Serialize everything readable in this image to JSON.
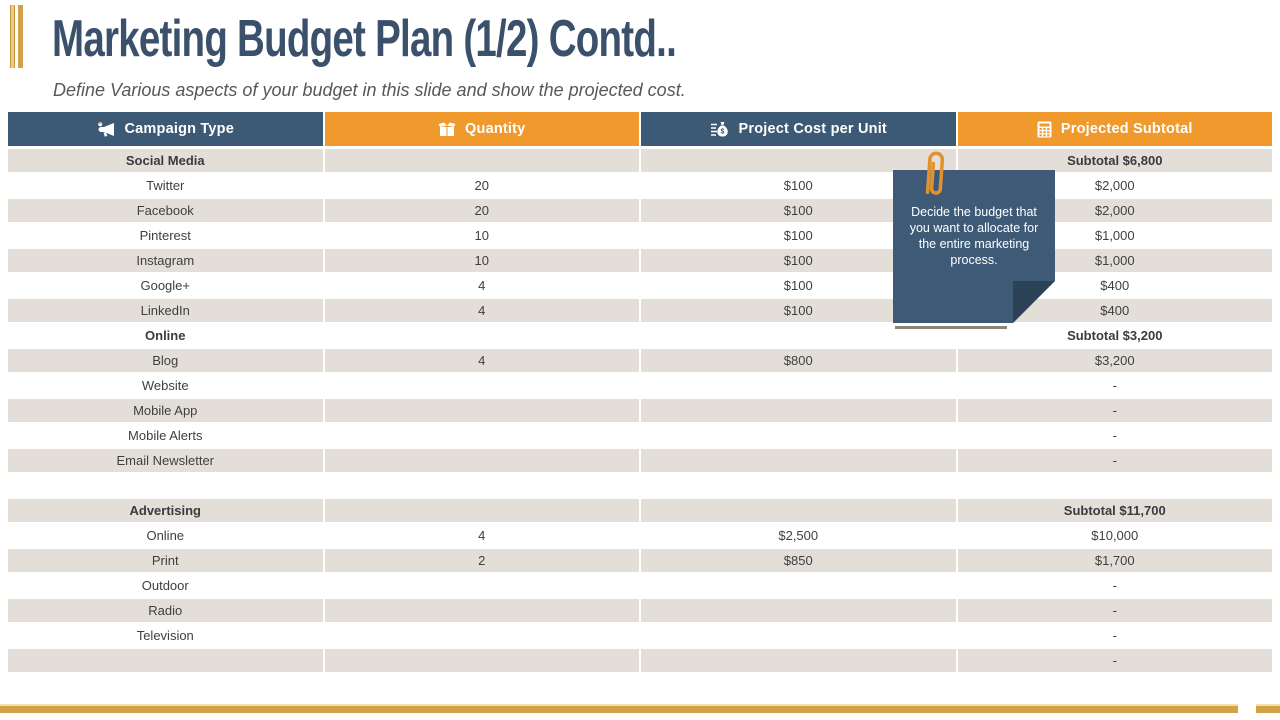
{
  "slide": {
    "title": "Marketing Budget Plan (1/2) Contd..",
    "subtitle": "Define Various aspects of your budget in this slide and show the projected cost."
  },
  "colors": {
    "header_blue": "#3C5A75",
    "header_orange": "#F0992D",
    "row_gray": "#E3DFD8",
    "note_blue": "#3E5A76",
    "accent_gold": "#D2A148"
  },
  "table": {
    "columns": [
      {
        "label": "Campaign Type",
        "icon": "megaphone-icon",
        "color": "#3C5A75"
      },
      {
        "label": "Quantity",
        "icon": "box-icon",
        "color": "#F0992D"
      },
      {
        "label": "Project Cost per Unit",
        "icon": "money-bag-icon",
        "color": "#3C5A75"
      },
      {
        "label": "Projected Subtotal",
        "icon": "calculator-icon",
        "color": "#F0992D"
      }
    ],
    "rows": [
      {
        "type": "section",
        "shade": "gray",
        "label": "Social Media",
        "quantity": "",
        "cost": "",
        "subtotal": "Subtotal $6,800"
      },
      {
        "type": "data",
        "shade": "white",
        "label": "Twitter",
        "quantity": "20",
        "cost": "$100",
        "subtotal": "$2,000"
      },
      {
        "type": "data",
        "shade": "gray",
        "label": "Facebook",
        "quantity": "20",
        "cost": "$100",
        "subtotal": "$2,000"
      },
      {
        "type": "data",
        "shade": "white",
        "label": "Pinterest",
        "quantity": "10",
        "cost": "$100",
        "subtotal": "$1,000"
      },
      {
        "type": "data",
        "shade": "gray",
        "label": "Instagram",
        "quantity": "10",
        "cost": "$100",
        "subtotal": "$1,000"
      },
      {
        "type": "data",
        "shade": "white",
        "label": "Google+",
        "quantity": "4",
        "cost": "$100",
        "subtotal": "$400"
      },
      {
        "type": "data",
        "shade": "gray",
        "label": "LinkedIn",
        "quantity": "4",
        "cost": "$100",
        "subtotal": "$400"
      },
      {
        "type": "section",
        "shade": "white",
        "label": "Online",
        "quantity": "",
        "cost": "",
        "subtotal": "Subtotal $3,200"
      },
      {
        "type": "data",
        "shade": "gray",
        "label": "Blog",
        "quantity": "4",
        "cost": "$800",
        "subtotal": "$3,200"
      },
      {
        "type": "data",
        "shade": "white",
        "label": "Website",
        "quantity": "",
        "cost": "",
        "subtotal": "-"
      },
      {
        "type": "data",
        "shade": "gray",
        "label": "Mobile App",
        "quantity": "",
        "cost": "",
        "subtotal": "-"
      },
      {
        "type": "data",
        "shade": "white",
        "label": "Mobile Alerts",
        "quantity": "",
        "cost": "",
        "subtotal": "-"
      },
      {
        "type": "data",
        "shade": "gray",
        "label": "Email Newsletter",
        "quantity": "",
        "cost": "",
        "subtotal": "-"
      },
      {
        "type": "spacer",
        "shade": "white",
        "label": "",
        "quantity": "",
        "cost": "",
        "subtotal": ""
      },
      {
        "type": "section",
        "shade": "gray",
        "label": "Advertising",
        "quantity": "",
        "cost": "",
        "subtotal": "Subtotal $11,700"
      },
      {
        "type": "data",
        "shade": "white",
        "label": "Online",
        "quantity": "4",
        "cost": "$2,500",
        "subtotal": "$10,000"
      },
      {
        "type": "data",
        "shade": "gray",
        "label": "Print",
        "quantity": "2",
        "cost": "$850",
        "subtotal": "$1,700"
      },
      {
        "type": "data",
        "shade": "white",
        "label": "Outdoor",
        "quantity": "",
        "cost": "",
        "subtotal": "-"
      },
      {
        "type": "data",
        "shade": "gray",
        "label": "Radio",
        "quantity": "",
        "cost": "",
        "subtotal": "-"
      },
      {
        "type": "data",
        "shade": "white",
        "label": "Television",
        "quantity": "",
        "cost": "",
        "subtotal": "-"
      },
      {
        "type": "data",
        "shade": "gray",
        "label": "",
        "quantity": "",
        "cost": "",
        "subtotal": "-"
      }
    ]
  },
  "note": {
    "text": "Decide the budget that you want to allocate for the entire marketing process."
  }
}
